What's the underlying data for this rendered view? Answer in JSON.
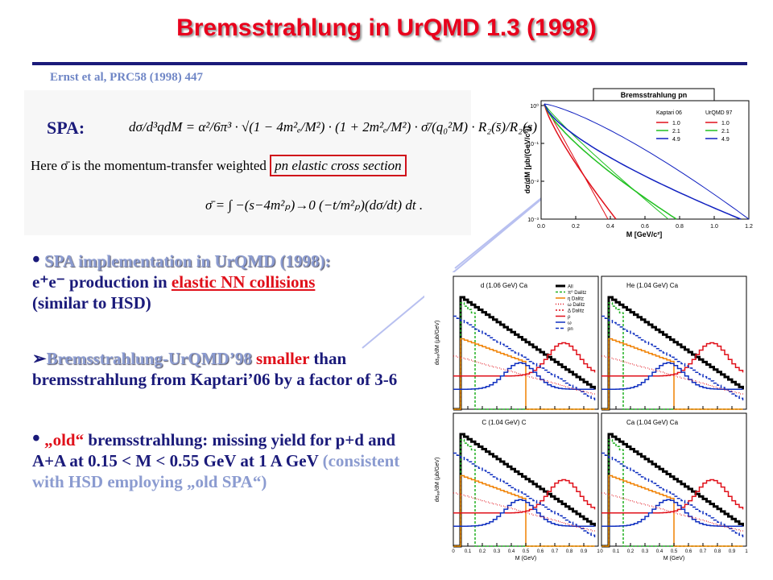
{
  "title": "Bremsstrahlung in UrQMD 1.3 (1998)",
  "reference": "Ernst et al, PRC58 (1998) 447",
  "spa": {
    "label": "SPA:",
    "formula": "dσ/d³qdM = α²/6π³ · √(1 − 4m²ₑ/M²) · (1 + 2m²ₑ/M²) · σ̄/(q₀²M) · R₂(s̄)/R₂(s) .",
    "note": "Here σ̄ is the momentum-transfer weighted",
    "note_highlight": "pn elastic cross section",
    "sigma_definition": "σ̄ = ∫ −(s−4m²ₚ)→0 (−t/m²ₚ)(dσ/dt) dt ."
  },
  "bullets": [
    {
      "lead": "SPA implementation in UrQMD (1998):",
      "text": "e⁺e⁻ production in ",
      "highlight": "elastic NN collisions",
      "tail": "(similar to HSD)"
    },
    {
      "lead": "Bremsstrahlung-UrQMD’98",
      "highlight": " smaller",
      "text": " than bremsstrahlung from Kaptari’06 by a factor of 3-6"
    },
    {
      "highlight": "„old“",
      "text": " bremsstrahlung: missing yield for p+d and A+A at 0.15 < M < 0.55 GeV at 1 A GeV",
      "tail": " (consistent with HSD employing „old SPA“)"
    }
  ],
  "kaptari_plot": {
    "title": "Bremsstrahlung pn",
    "ylabel": "dσ/dM  [μb/(GeV/c²)]",
    "xlabel": "M  [GeV/c²]",
    "xticks": [
      "0.0",
      "0.2",
      "0.4",
      "0.6",
      "0.8",
      "1.0",
      "1.2"
    ],
    "yticks": [
      "10⁰",
      "10⁻¹",
      "10⁻²",
      "10⁻³"
    ],
    "legend_headers": [
      "Kaptari 06",
      "UrQMD 97"
    ],
    "legend_rows": [
      "1.0",
      "2.1",
      "4.9"
    ]
  },
  "hades_plots": {
    "panels": [
      "d (1.06 GeV) Ca",
      "He (1.04 GeV) Ca",
      "C (1.04 GeV) C",
      "Ca (1.04 GeV) Ca"
    ],
    "legend": [
      "All",
      "π⁰ Dalitz",
      "η Dalitz",
      "ω Dalitz",
      "Δ Dalitz",
      "ρ",
      "ω",
      "pn"
    ],
    "xlabel": "M (GeV)",
    "ylabel": "dσₑₑ/dM (μb/GeV)",
    "xticks": [
      "0",
      "0.1",
      "0.2",
      "0.3",
      "0.4",
      "0.5",
      "0.6",
      "0.7",
      "0.8",
      "0.9",
      "1"
    ]
  }
}
